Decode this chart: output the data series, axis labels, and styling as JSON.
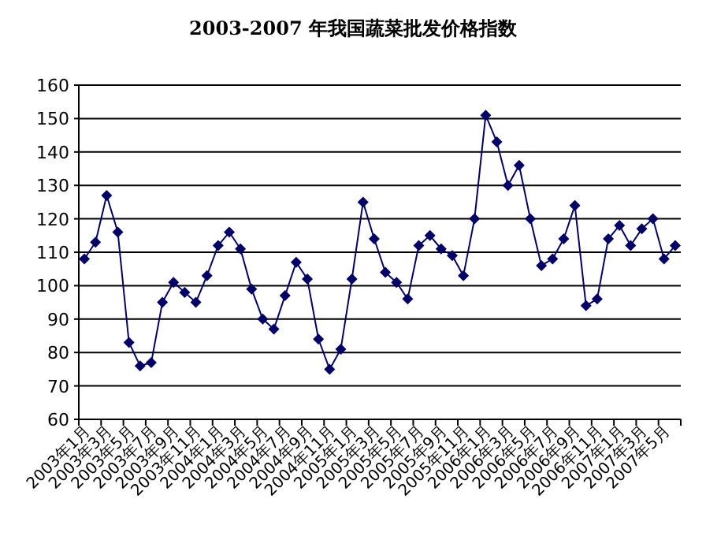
{
  "chart_data": {
    "type": "line",
    "title": "2003-2007 年我国蔬菜批发价格指数",
    "categories": [
      "2003年1月",
      null,
      "2003年3月",
      null,
      "2003年5月",
      null,
      "2003年7月",
      null,
      "2003年9月",
      null,
      "2003年11月",
      null,
      "2004年1月",
      null,
      "2004年3月",
      null,
      "2004年5月",
      null,
      "2004年7月",
      null,
      "2004年9月",
      null,
      "2004年11月",
      null,
      "2005年1月",
      null,
      "2005年3月",
      null,
      "2005年5月",
      null,
      "2005年7月",
      null,
      "2005年9月",
      null,
      "2005年11月",
      null,
      "2006年1月",
      null,
      "2006年3月",
      null,
      "2006年5月",
      null,
      "2006年7月",
      null,
      "2006年9月",
      null,
      "2006年11月",
      null,
      "2007年1月",
      null,
      "2007年3月",
      null,
      "2007年5月",
      null
    ],
    "series": [
      {
        "color": "#000066",
        "values": [
          108,
          113,
          127,
          116,
          83,
          76,
          77,
          95,
          101,
          98,
          95,
          103,
          112,
          116,
          111,
          99,
          90,
          87,
          97,
          107,
          102,
          84,
          75,
          81,
          102,
          125,
          114,
          104,
          101,
          96,
          112,
          115,
          111,
          109,
          103,
          120,
          151,
          143,
          130,
          136,
          120,
          106,
          108,
          114,
          124,
          94,
          96,
          114,
          118,
          112,
          117,
          120,
          108,
          112
        ]
      }
    ],
    "ylim": [
      60,
      160
    ],
    "yticks": [
      60,
      70,
      80,
      90,
      100,
      110,
      120,
      130,
      140,
      150,
      160
    ],
    "grid": "y",
    "marker": "diamond",
    "line_style": "solid"
  }
}
